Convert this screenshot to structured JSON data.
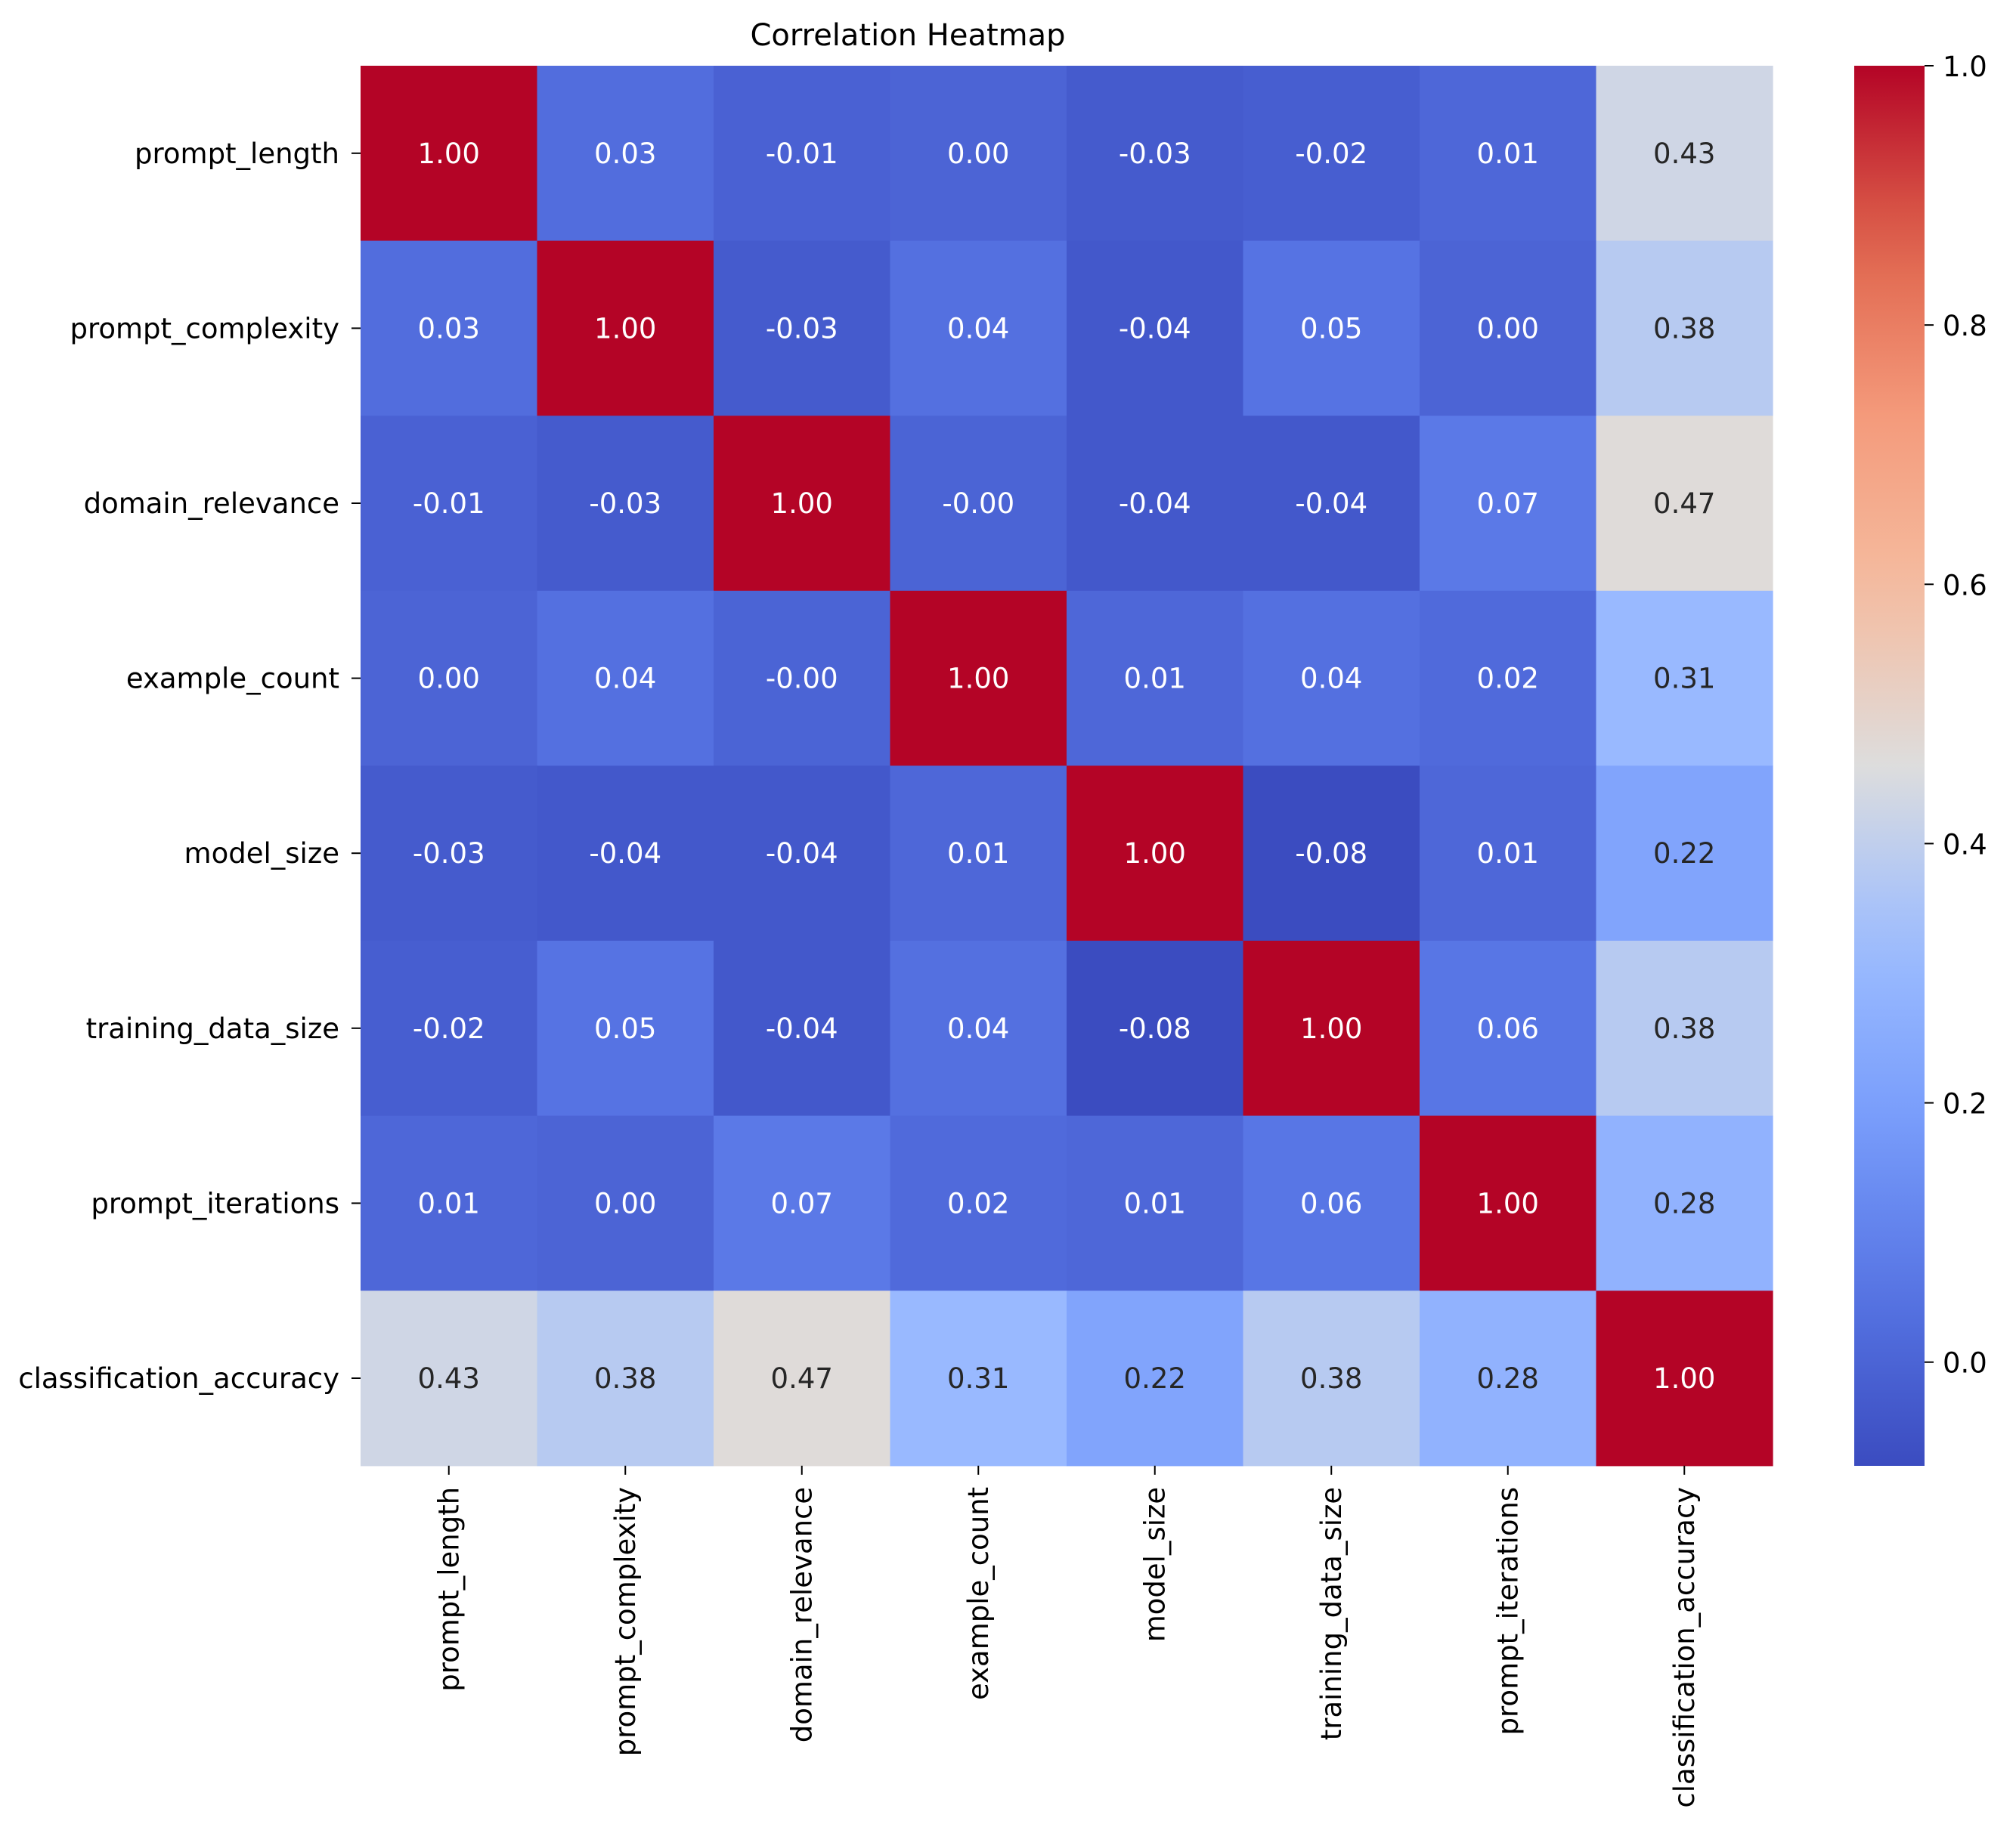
{
  "chart_data": {
    "type": "heatmap",
    "title": "Correlation Heatmap",
    "xlabel": "",
    "ylabel": "",
    "colormap": "coolwarm",
    "value_format": "0.00",
    "vmin": -0.08,
    "vmax": 1.0,
    "row_labels": [
      "prompt_length",
      "prompt_complexity",
      "domain_relevance",
      "example_count",
      "model_size",
      "training_data_size",
      "prompt_iterations",
      "classification_accuracy"
    ],
    "col_labels": [
      "prompt_length",
      "prompt_complexity",
      "domain_relevance",
      "example_count",
      "model_size",
      "training_data_size",
      "prompt_iterations",
      "classification_accuracy"
    ],
    "values": [
      [
        1.0,
        0.03,
        -0.01,
        0.0,
        -0.03,
        -0.02,
        0.01,
        0.43
      ],
      [
        0.03,
        1.0,
        -0.03,
        0.04,
        -0.04,
        0.05,
        0.0,
        0.38
      ],
      [
        -0.01,
        -0.03,
        1.0,
        -0.001,
        -0.04,
        -0.04,
        0.07,
        0.47
      ],
      [
        0.0,
        0.04,
        -0.001,
        1.0,
        0.01,
        0.04,
        0.02,
        0.31
      ],
      [
        -0.03,
        -0.04,
        -0.04,
        0.01,
        1.0,
        -0.08,
        0.01,
        0.22
      ],
      [
        -0.02,
        0.05,
        -0.04,
        0.04,
        -0.08,
        1.0,
        0.06,
        0.38
      ],
      [
        0.01,
        0.0,
        0.07,
        0.02,
        0.01,
        0.06,
        1.0,
        0.28
      ],
      [
        0.43,
        0.38,
        0.47,
        0.31,
        0.22,
        0.38,
        0.28,
        1.0
      ]
    ],
    "colorbar": {
      "ticks": [
        0.0,
        0.2,
        0.4,
        0.6,
        0.8,
        1.0
      ],
      "tick_labels": [
        "0.0",
        "0.2",
        "0.4",
        "0.6",
        "0.8",
        "1.0"
      ]
    }
  }
}
